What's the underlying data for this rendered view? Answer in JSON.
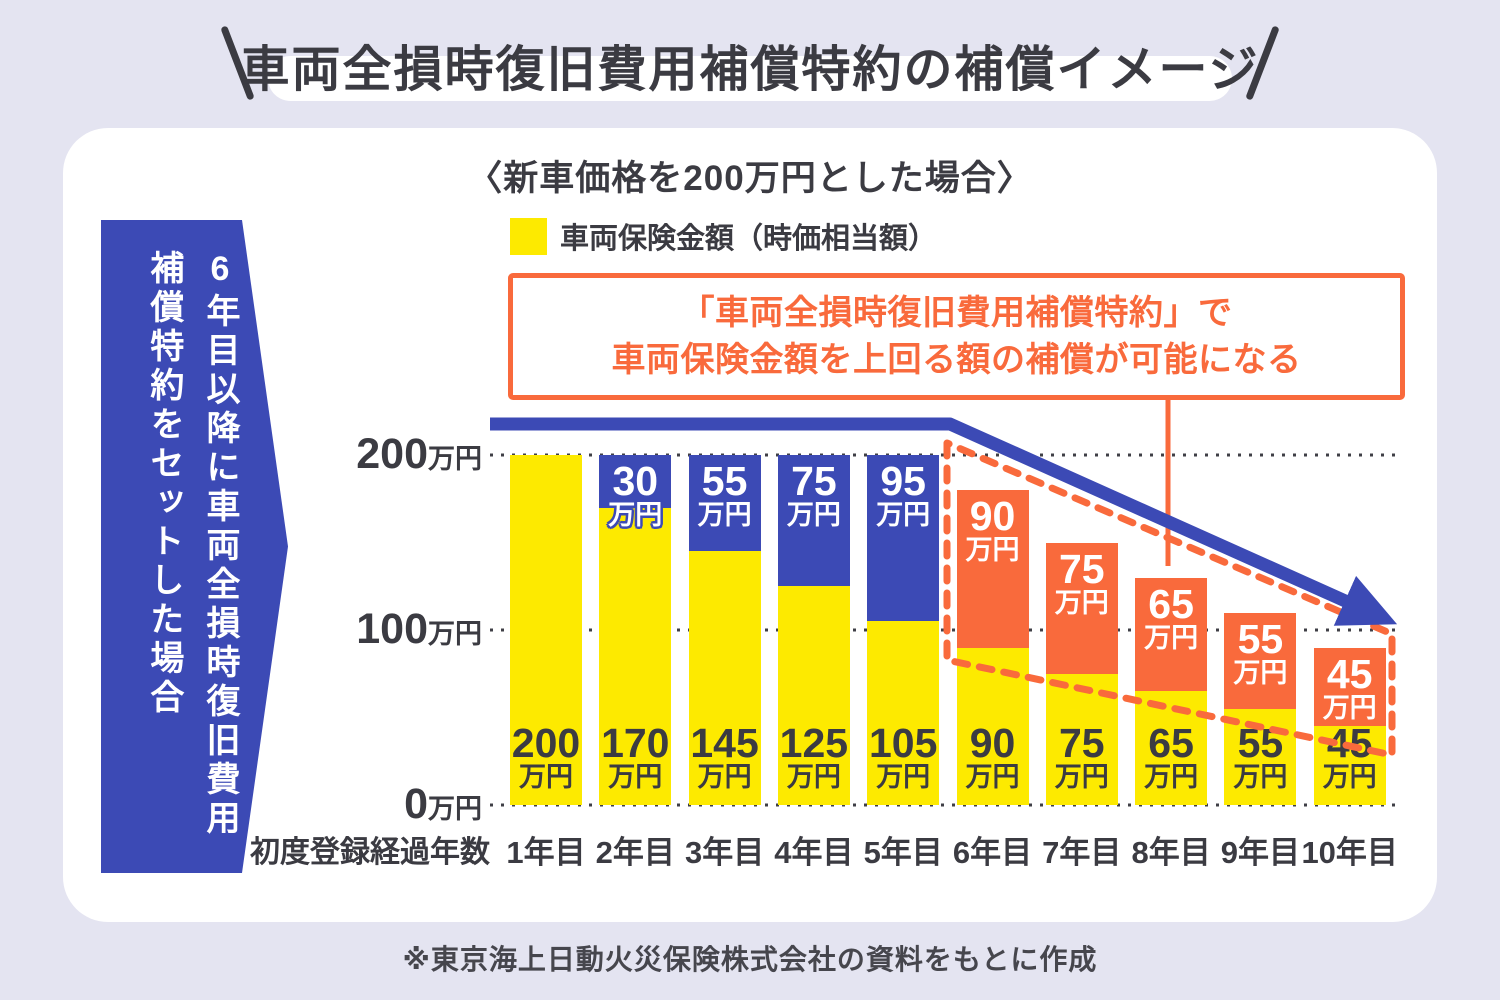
{
  "page": {
    "title": "車両全損時復旧費用補償特約の補償イメージ",
    "footnote": "※東京海上日動火災保険株式会社の資料をもとに作成"
  },
  "panel": {
    "callout": {
      "line1": "「車両全損時復旧費用補償特約」で",
      "line2": "車両保険金額を上回る額の補償が可能になる"
    },
    "side_banner": {
      "line1": "6年目以降に車両全損時復旧費用",
      "line2": "補償特約をセットした場合"
    }
  },
  "colors": {
    "background": "#e4e4f1",
    "panel": "#ffffff",
    "text_dark": "#3b3b42",
    "yellow": "#fdea00",
    "blue": "#3c4ab5",
    "orange": "#f96a3c"
  },
  "chart_data": {
    "type": "bar",
    "stacked": true,
    "title": "〈新車価格を200万円とした場合〉",
    "unit": "万円",
    "x_axis_title": "初度登録経過年数",
    "y_max": 220,
    "grid": "dotted horizontal",
    "legend": [
      {
        "label": "車両保険金額（時価相当額）",
        "color": "#fdea00"
      }
    ],
    "y_ticks": [
      {
        "value": 200,
        "label_value": "200",
        "label_unit": "万円"
      },
      {
        "value": 100,
        "label_value": "100",
        "label_unit": "万円"
      },
      {
        "value": 0,
        "label_value": "0",
        "label_unit": "万円"
      }
    ],
    "categories": [
      "1年目",
      "2年目",
      "3年目",
      "4年目",
      "5年目",
      "6年目",
      "7年目",
      "8年目",
      "9年目",
      "10年目"
    ],
    "base_color": "#fdea00",
    "bars": [
      {
        "category": "1年目",
        "base_value": 200,
        "top_value": 0,
        "top_color": null
      },
      {
        "category": "2年目",
        "base_value": 170,
        "top_value": 30,
        "top_color": "#3c4ab5"
      },
      {
        "category": "3年目",
        "base_value": 145,
        "top_value": 55,
        "top_color": "#3c4ab5"
      },
      {
        "category": "4年目",
        "base_value": 125,
        "top_value": 75,
        "top_color": "#3c4ab5"
      },
      {
        "category": "5年目",
        "base_value": 105,
        "top_value": 95,
        "top_color": "#3c4ab5"
      },
      {
        "category": "6年目",
        "base_value": 90,
        "top_value": 90,
        "top_color": "#f96a3c"
      },
      {
        "category": "7年目",
        "base_value": 75,
        "top_value": 75,
        "top_color": "#f96a3c"
      },
      {
        "category": "8年目",
        "base_value": 65,
        "top_value": 65,
        "top_color": "#f96a3c"
      },
      {
        "category": "9年目",
        "base_value": 55,
        "top_value": 55,
        "top_color": "#f96a3c"
      },
      {
        "category": "10年目",
        "base_value": 45,
        "top_value": 45,
        "top_color": "#f96a3c"
      }
    ]
  }
}
